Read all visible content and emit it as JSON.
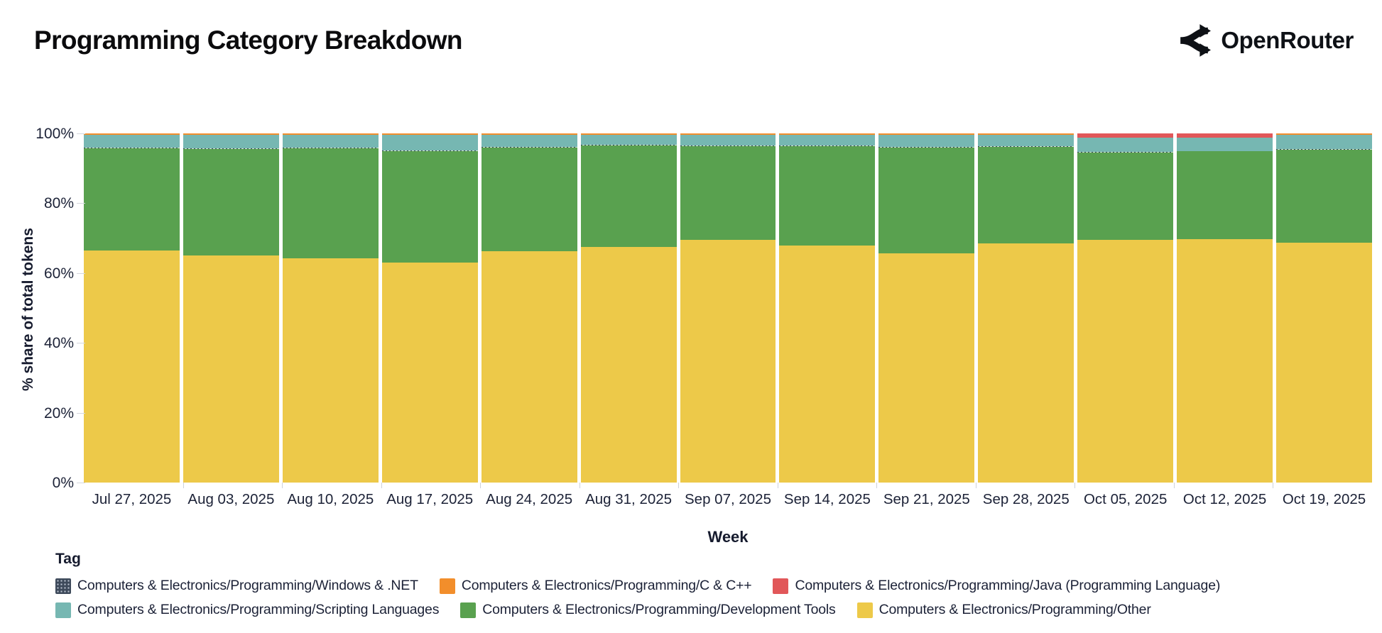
{
  "header": {
    "title": "Programming Category Breakdown",
    "logo_text": "OpenRouter"
  },
  "chart_data": {
    "type": "bar",
    "stacked": true,
    "normalized_percent": true,
    "title": "Programming Category Breakdown",
    "xlabel": "Week",
    "ylabel": "% share of total tokens",
    "ylim": [
      0,
      100
    ],
    "y_ticks": [
      "0%",
      "20%",
      "40%",
      "60%",
      "80%",
      "100%"
    ],
    "grid": false,
    "legend_title": "Tag",
    "legend_position": "bottom",
    "categories": [
      "Jul 27, 2025",
      "Aug 03, 2025",
      "Aug 10, 2025",
      "Aug 17, 2025",
      "Aug 24, 2025",
      "Aug 31, 2025",
      "Sep 07, 2025",
      "Sep 14, 2025",
      "Sep 21, 2025",
      "Sep 28, 2025",
      "Oct 05, 2025",
      "Oct 12, 2025",
      "Oct 19, 2025"
    ],
    "stack_top_to_bottom": [
      "c_cpp",
      "java",
      "scripting",
      "windows",
      "dev_tools",
      "other"
    ],
    "series": [
      {
        "key": "windows",
        "name": "Computers & Electronics/Programming/Windows & .NET",
        "color": "#3e4a5b",
        "pattern": "dots",
        "values": [
          0.2,
          0.2,
          0.2,
          0.2,
          0.2,
          0.2,
          0.2,
          0.2,
          0.2,
          0.2,
          0.1,
          0.1,
          0.2
        ]
      },
      {
        "key": "c_cpp",
        "name": "Computers & Electronics/Programming/C & C++",
        "color": "#f28e2b",
        "values": [
          0.4,
          0.4,
          0.4,
          0.4,
          0.4,
          0.4,
          0.4,
          0.4,
          0.4,
          0.4,
          0.1,
          0.1,
          0.5
        ]
      },
      {
        "key": "java",
        "name": "Computers & Electronics/Programming/Java (Programming Language)",
        "color": "#e15759",
        "values": [
          0,
          0,
          0,
          0,
          0,
          0,
          0,
          0,
          0,
          0,
          1.2,
          1.1,
          0
        ]
      },
      {
        "key": "scripting",
        "name": "Computers & Electronics/Programming/Scripting Languages",
        "color": "#76b7b2",
        "values": [
          3.6,
          3.8,
          3.7,
          4.4,
          3.5,
          2.8,
          3.1,
          3.0,
          3.4,
          3.2,
          4.0,
          3.8,
          3.9
        ]
      },
      {
        "key": "dev_tools",
        "name": "Computers & Electronics/Programming/Development Tools",
        "color": "#59a14f",
        "values": [
          29.3,
          30.6,
          31.4,
          31.9,
          29.6,
          29.2,
          26.8,
          28.5,
          30.4,
          27.8,
          25.1,
          25.2,
          26.7
        ]
      },
      {
        "key": "other",
        "name": "Computers & Electronics/Programming/Other",
        "color": "#edc949",
        "values": [
          66.5,
          65.0,
          64.3,
          63.1,
          66.3,
          67.4,
          69.5,
          67.9,
          65.6,
          68.4,
          69.5,
          69.7,
          68.7
        ]
      }
    ]
  }
}
